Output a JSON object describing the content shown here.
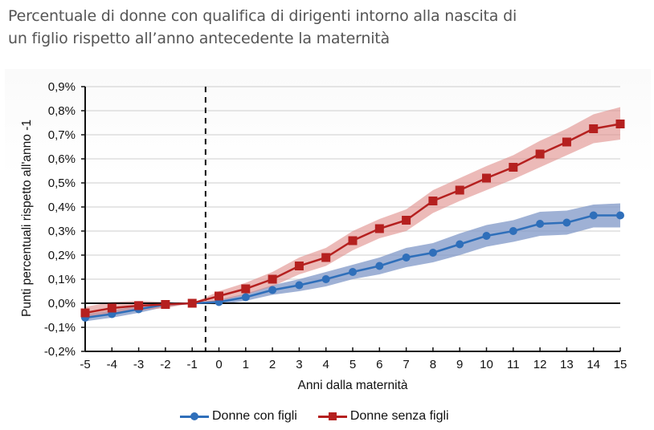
{
  "title": {
    "line1": "Percentuale di donne con qualifica di dirigenti intorno alla nascita di",
    "line2": "un figlio rispetto all’anno antecedente la maternità"
  },
  "colors": {
    "blue": "#2f6fba",
    "blue_band": "#7f97c7",
    "red": "#b5201f",
    "red_band": "#e08c88",
    "grid": "#dddddd",
    "axis": "#111111"
  },
  "legend": {
    "items": [
      {
        "label": "Donne con figli",
        "color": "#2f6fba",
        "marker": "circle"
      },
      {
        "label": "Donne senza figli",
        "color": "#b5201f",
        "marker": "square"
      }
    ]
  },
  "chart_data": {
    "type": "line",
    "title": "Percentuale di donne con qualifica di dirigenti intorno alla nascita di un figlio rispetto all’anno antecedente la maternità",
    "xlabel": "Anni dalla maternità",
    "ylabel": "Punti percentuali rispetto all'anno -1",
    "x": [
      -5,
      -4,
      -3,
      -2,
      -1,
      0,
      1,
      2,
      3,
      4,
      5,
      6,
      7,
      8,
      9,
      10,
      11,
      12,
      13,
      14,
      15
    ],
    "x_tick_labels": [
      "-5",
      "-4",
      "-3",
      "-2",
      "-1",
      "0",
      "1",
      "2",
      "3",
      "4",
      "5",
      "6",
      "7",
      "8",
      "9",
      "10",
      "11",
      "12",
      "13",
      "14",
      "15"
    ],
    "ylim": [
      -0.2,
      0.9
    ],
    "y_ticks": [
      -0.2,
      -0.1,
      0.0,
      0.1,
      0.2,
      0.3,
      0.4,
      0.5,
      0.6,
      0.7,
      0.8,
      0.9
    ],
    "y_tick_labels": [
      "-0,2%",
      "-0,1%",
      "0,0%",
      "0,1%",
      "0,2%",
      "0,3%",
      "0,4%",
      "0,5%",
      "0,6%",
      "0,7%",
      "0,8%",
      "0,9%"
    ],
    "grid": true,
    "reference_lines": {
      "horizontal_y": 0.0,
      "vertical_dashed_x": -0.5
    },
    "legend_position": "bottom",
    "series": [
      {
        "name": "Donne con figli",
        "color": "#2f6fba",
        "marker": "circle",
        "values": [
          -0.06,
          -0.045,
          -0.025,
          -0.005,
          0.0,
          0.005,
          0.025,
          0.055,
          0.075,
          0.1,
          0.13,
          0.155,
          0.19,
          0.21,
          0.245,
          0.28,
          0.3,
          0.33,
          0.335,
          0.365,
          0.365
        ],
        "ci_low": [
          -0.075,
          -0.06,
          -0.04,
          -0.015,
          0.0,
          -0.005,
          0.01,
          0.035,
          0.05,
          0.07,
          0.1,
          0.12,
          0.15,
          0.17,
          0.2,
          0.235,
          0.255,
          0.28,
          0.285,
          0.315,
          0.315
        ],
        "ci_high": [
          -0.045,
          -0.03,
          -0.01,
          0.005,
          0.0,
          0.015,
          0.04,
          0.075,
          0.1,
          0.13,
          0.16,
          0.19,
          0.23,
          0.25,
          0.29,
          0.325,
          0.345,
          0.38,
          0.385,
          0.41,
          0.415
        ]
      },
      {
        "name": "Donne senza figli",
        "color": "#b5201f",
        "marker": "square",
        "values": [
          -0.04,
          -0.02,
          -0.01,
          -0.005,
          0.0,
          0.03,
          0.06,
          0.1,
          0.155,
          0.19,
          0.26,
          0.31,
          0.345,
          0.425,
          0.47,
          0.52,
          0.565,
          0.62,
          0.67,
          0.725,
          0.745
        ],
        "ci_low": [
          -0.065,
          -0.04,
          -0.03,
          -0.02,
          0.0,
          0.01,
          0.035,
          0.07,
          0.12,
          0.155,
          0.22,
          0.27,
          0.3,
          0.375,
          0.425,
          0.47,
          0.515,
          0.565,
          0.615,
          0.665,
          0.68
        ],
        "ci_high": [
          -0.015,
          0.005,
          0.01,
          0.005,
          0.0,
          0.05,
          0.085,
          0.13,
          0.19,
          0.23,
          0.3,
          0.35,
          0.39,
          0.47,
          0.52,
          0.57,
          0.615,
          0.675,
          0.725,
          0.785,
          0.815
        ]
      }
    ]
  }
}
